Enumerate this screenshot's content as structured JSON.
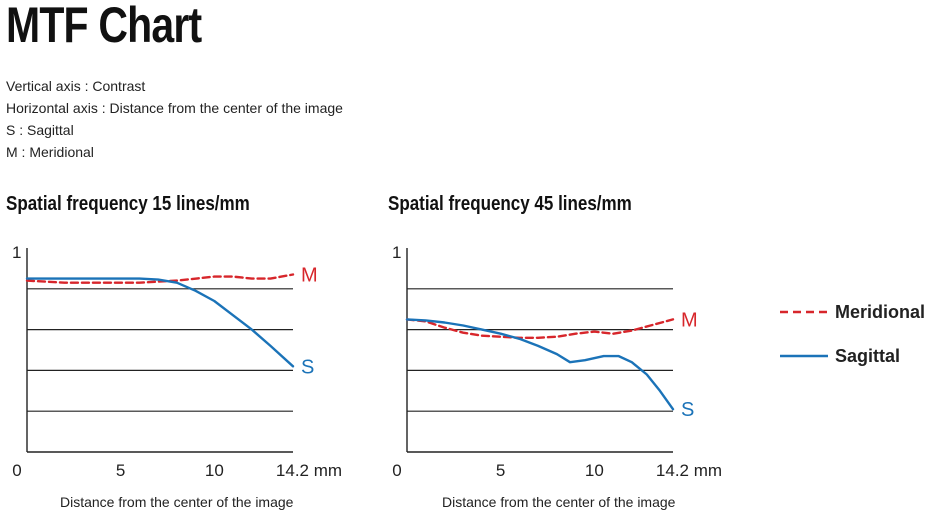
{
  "page": {
    "title": "MTF Chart",
    "descriptions": [
      "Vertical axis : Contrast",
      "Horizontal axis : Distance from the center of the image",
      "S : Sagittal",
      "M : Meridional"
    ]
  },
  "legend": {
    "meridional": "Meridional",
    "sagittal": "Sagittal"
  },
  "colors": {
    "meridional": "#d7262b",
    "sagittal": "#1b73b8",
    "grid": "#222222"
  },
  "chart_data": [
    {
      "type": "line",
      "title": "Spatial frequency 15 lines/mm",
      "xlabel": "Distance from the center of the image",
      "ylabel": "Contrast",
      "xlim": [
        0,
        14.2
      ],
      "ylim": [
        0,
        1
      ],
      "x_ticks": [
        "0",
        "5",
        "10",
        "14.2 mm"
      ],
      "x_tick_values": [
        0,
        5,
        10,
        14.2
      ],
      "y_tick_label": "1",
      "gridlines": [
        0.2,
        0.4,
        0.6,
        0.8
      ],
      "series": [
        {
          "name": "Meridional",
          "end_label": "M",
          "style": "dashed",
          "x": [
            0,
            2,
            4,
            6,
            8,
            10,
            11,
            12,
            13,
            14.2
          ],
          "y": [
            0.84,
            0.83,
            0.83,
            0.83,
            0.84,
            0.86,
            0.86,
            0.85,
            0.85,
            0.87
          ]
        },
        {
          "name": "Sagittal",
          "end_label": "S",
          "style": "solid",
          "x": [
            0,
            2,
            4,
            6,
            7,
            8,
            9,
            10,
            11,
            12,
            13,
            14.2
          ],
          "y": [
            0.85,
            0.85,
            0.85,
            0.85,
            0.845,
            0.83,
            0.79,
            0.74,
            0.67,
            0.6,
            0.52,
            0.42
          ]
        }
      ]
    },
    {
      "type": "line",
      "title": "Spatial frequency 45 lines/mm",
      "xlabel": "Distance from the center of the image",
      "ylabel": "Contrast",
      "xlim": [
        0,
        14.2
      ],
      "ylim": [
        0,
        1
      ],
      "x_ticks": [
        "0",
        "5",
        "10",
        "14.2 mm"
      ],
      "x_tick_values": [
        0,
        5,
        10,
        14.2
      ],
      "y_tick_label": "1",
      "gridlines": [
        0.2,
        0.4,
        0.6,
        0.8
      ],
      "series": [
        {
          "name": "Meridional",
          "end_label": "M",
          "style": "dashed",
          "x": [
            0,
            1,
            2,
            3,
            4,
            5,
            6,
            7,
            8,
            9,
            10,
            11,
            12,
            13,
            14.2
          ],
          "y": [
            0.65,
            0.64,
            0.61,
            0.585,
            0.57,
            0.565,
            0.56,
            0.56,
            0.565,
            0.58,
            0.59,
            0.58,
            0.595,
            0.62,
            0.65
          ]
        },
        {
          "name": "Sagittal",
          "end_label": "S",
          "style": "solid",
          "x": [
            0,
            1,
            2,
            3,
            4,
            5,
            6,
            7,
            8,
            8.7,
            9.5,
            10.5,
            11.3,
            12,
            12.8,
            13.5,
            14.2
          ],
          "y": [
            0.65,
            0.645,
            0.635,
            0.62,
            0.6,
            0.58,
            0.555,
            0.52,
            0.48,
            0.44,
            0.45,
            0.47,
            0.47,
            0.44,
            0.38,
            0.3,
            0.21
          ]
        }
      ]
    }
  ]
}
